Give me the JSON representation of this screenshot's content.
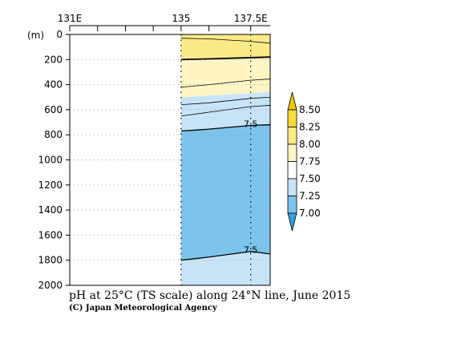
{
  "chart_data": {
    "type": "contour-section",
    "title": "pH at 25°C (TS scale) along 24°N line, June 2015",
    "credit": "(C) Japan Meteorological Agency",
    "yunit": "(m)",
    "x_ticks": [
      {
        "value": 131,
        "label": "131E"
      },
      {
        "value": 132,
        "label": ""
      },
      {
        "value": 133,
        "label": ""
      },
      {
        "value": 134,
        "label": ""
      },
      {
        "value": 135,
        "label": "135"
      },
      {
        "value": 136,
        "label": ""
      },
      {
        "value": 137.5,
        "label": "137.5E"
      }
    ],
    "xlim": [
      131,
      138.2
    ],
    "y_ticks": [
      0,
      200,
      400,
      600,
      800,
      1000,
      1200,
      1400,
      1600,
      1800,
      2000
    ],
    "ylim": [
      0,
      2000
    ],
    "y_reversed": true,
    "data_region_x": [
      135,
      138.2
    ],
    "station_lines": [
      135,
      137.5
    ],
    "colorbar": {
      "levels": [
        "7.00",
        "7.25",
        "7.50",
        "7.75",
        "8.00",
        "8.25",
        "8.50"
      ],
      "colors": [
        "#3a9fd6",
        "#7dc4ec",
        "#c7e4f6",
        "#ffffff",
        "#fdf5c4",
        "#fbeb88",
        "#f6dc3c",
        "#ecc800"
      ]
    },
    "bands": [
      {
        "color": "#fbeb88",
        "top": [
          [
            135,
            0
          ],
          [
            138.2,
            0
          ]
        ],
        "bottom": [
          [
            135,
            190
          ],
          [
            137.5,
            185
          ],
          [
            138.2,
            185
          ]
        ]
      },
      {
        "color": "#fdf5c4",
        "top": [
          [
            135,
            190
          ],
          [
            137.5,
            185
          ],
          [
            138.2,
            185
          ]
        ],
        "bottom": [
          [
            135,
            500
          ],
          [
            137.5,
            470
          ],
          [
            138.2,
            460
          ]
        ]
      },
      {
        "color": "#c7e4f6",
        "top": [
          [
            135,
            500
          ],
          [
            137.5,
            470
          ],
          [
            138.2,
            460
          ]
        ],
        "bottom": [
          [
            135,
            770
          ],
          [
            137.5,
            725
          ],
          [
            138.2,
            720
          ]
        ]
      },
      {
        "color": "#7dc4ec",
        "top": [
          [
            135,
            770
          ],
          [
            137.5,
            725
          ],
          [
            138.2,
            720
          ]
        ],
        "bottom": [
          [
            135,
            1800
          ],
          [
            137.5,
            1730
          ],
          [
            138.2,
            1750
          ]
        ]
      },
      {
        "color": "#c7e4f6",
        "top": [
          [
            135,
            1800
          ],
          [
            137.5,
            1730
          ],
          [
            138.2,
            1750
          ]
        ],
        "bottom": [
          [
            135,
            2000
          ],
          [
            138.2,
            2000
          ]
        ]
      }
    ],
    "contours": [
      {
        "width": 0.8,
        "points": [
          [
            135,
            30
          ],
          [
            136,
            35
          ],
          [
            137.5,
            55
          ],
          [
            138.2,
            70
          ]
        ]
      },
      {
        "width": 1.8,
        "points": [
          [
            135,
            200
          ],
          [
            136,
            195
          ],
          [
            137.5,
            185
          ],
          [
            138.2,
            180
          ]
        ]
      },
      {
        "width": 0.8,
        "points": [
          [
            135,
            420
          ],
          [
            136,
            400
          ],
          [
            137.5,
            365
          ],
          [
            138.2,
            355
          ]
        ]
      },
      {
        "width": 0.8,
        "points": [
          [
            135,
            560
          ],
          [
            136,
            545
          ],
          [
            137.5,
            510
          ],
          [
            138.2,
            500
          ]
        ]
      },
      {
        "width": 0.8,
        "points": [
          [
            135,
            650
          ],
          [
            136,
            620
          ],
          [
            137.5,
            575
          ],
          [
            138.2,
            565
          ]
        ]
      },
      {
        "width": 1.3,
        "points": [
          [
            135,
            770
          ],
          [
            136,
            755
          ],
          [
            137.5,
            725
          ],
          [
            138.2,
            720
          ]
        ]
      },
      {
        "width": 1.3,
        "points": [
          [
            135,
            1800
          ],
          [
            136,
            1775
          ],
          [
            137.5,
            1730
          ],
          [
            138.2,
            1750
          ]
        ]
      }
    ],
    "contour_labels": [
      {
        "text": "7.5",
        "x": 137.5,
        "y": 725
      },
      {
        "text": "7.5",
        "x": 137.5,
        "y": 1730
      }
    ]
  }
}
